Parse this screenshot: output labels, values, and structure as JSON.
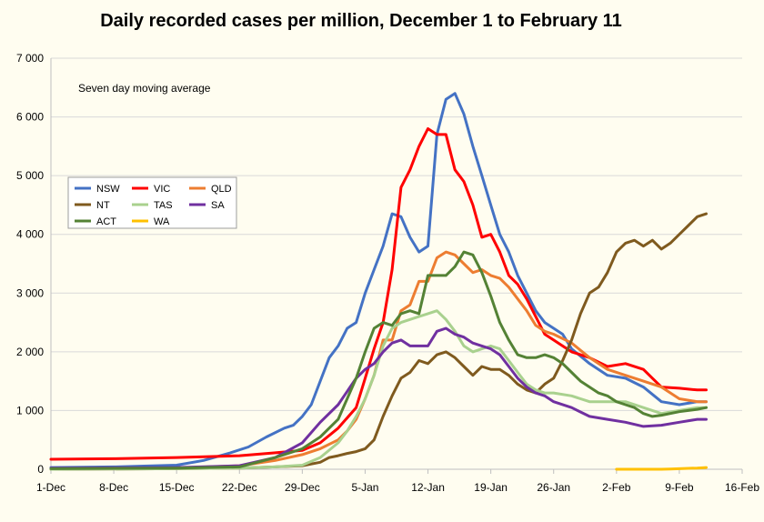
{
  "chart_data": {
    "type": "line",
    "title": "Daily recorded cases per million, December 1 to February 11",
    "annotation": "Seven day moving average",
    "x_ticks": [
      "1-Dec",
      "8-Dec",
      "15-Dec",
      "22-Dec",
      "29-Dec",
      "5-Jan",
      "12-Jan",
      "19-Jan",
      "26-Jan",
      "2-Feb",
      "9-Feb",
      "16-Feb"
    ],
    "x_range_days": [
      0,
      77
    ],
    "ylim": [
      0,
      7000
    ],
    "y_ticks": [
      "0",
      "1 000",
      "2 000",
      "3 000",
      "4 000",
      "5 000",
      "6 000",
      "7 000"
    ],
    "y_tick_values": [
      0,
      1000,
      2000,
      3000,
      4000,
      5000,
      6000,
      7000
    ],
    "grid": "horizontal",
    "legend_position": "left-middle",
    "series": [
      {
        "name": "NSW",
        "color": "#4472c4",
        "x": [
          0,
          7,
          14,
          17,
          20,
          22,
          24,
          26,
          27,
          28,
          29,
          30,
          31,
          32,
          33,
          34,
          35,
          36,
          37,
          38,
          39,
          40,
          41,
          42,
          43,
          44,
          45,
          46,
          47,
          48,
          49,
          50,
          51,
          52,
          53,
          54,
          55,
          56,
          57,
          58,
          60,
          62,
          64,
          66,
          68,
          70,
          72,
          73
        ],
        "y": [
          30,
          40,
          70,
          150,
          280,
          380,
          550,
          700,
          750,
          900,
          1100,
          1500,
          1900,
          2100,
          2400,
          2500,
          3000,
          3400,
          3800,
          4350,
          4300,
          3950,
          3700,
          3800,
          5700,
          6300,
          6400,
          6050,
          5500,
          5000,
          4500,
          4000,
          3700,
          3300,
          3000,
          2700,
          2500,
          2400,
          2300,
          2050,
          1800,
          1600,
          1550,
          1400,
          1150,
          1100,
          1150,
          1150
        ]
      },
      {
        "name": "VIC",
        "color": "#ff0000",
        "x": [
          0,
          7,
          14,
          21,
          25,
          28,
          30,
          32,
          34,
          35,
          36,
          37,
          38,
          39,
          40,
          41,
          42,
          43,
          44,
          45,
          46,
          47,
          48,
          49,
          50,
          51,
          52,
          53,
          54,
          55,
          56,
          58,
          60,
          62,
          64,
          66,
          67,
          68,
          70,
          72,
          73
        ],
        "y": [
          170,
          180,
          200,
          230,
          280,
          320,
          450,
          700,
          1050,
          1550,
          2050,
          2500,
          3400,
          4800,
          5100,
          5500,
          5800,
          5700,
          5700,
          5100,
          4900,
          4500,
          3950,
          4000,
          3700,
          3300,
          3150,
          2900,
          2600,
          2300,
          2200,
          2000,
          1900,
          1750,
          1800,
          1700,
          1550,
          1400,
          1380,
          1350,
          1350
        ]
      },
      {
        "name": "QLD",
        "color": "#ed7d31",
        "x": [
          0,
          14,
          21,
          25,
          28,
          30,
          32,
          33,
          34,
          35,
          36,
          37,
          38,
          39,
          40,
          41,
          42,
          43,
          44,
          45,
          46,
          47,
          48,
          49,
          50,
          51,
          52,
          53,
          54,
          55,
          56,
          58,
          60,
          62,
          64,
          66,
          68,
          70,
          72,
          73
        ],
        "y": [
          10,
          20,
          60,
          150,
          250,
          350,
          500,
          650,
          850,
          1200,
          1600,
          2200,
          2200,
          2700,
          2800,
          3200,
          3200,
          3600,
          3700,
          3650,
          3500,
          3350,
          3400,
          3300,
          3250,
          3100,
          2900,
          2700,
          2450,
          2350,
          2300,
          2150,
          1900,
          1700,
          1600,
          1500,
          1400,
          1200,
          1150,
          1150
        ]
      },
      {
        "name": "NT",
        "color": "#7f5a1e",
        "x": [
          0,
          14,
          21,
          25,
          28,
          30,
          31,
          32,
          33,
          34,
          35,
          36,
          37,
          38,
          39,
          40,
          41,
          42,
          43,
          44,
          45,
          46,
          47,
          48,
          49,
          50,
          51,
          52,
          53,
          54,
          55,
          56,
          57,
          58,
          59,
          60,
          61,
          62,
          63,
          64,
          65,
          66,
          67,
          68,
          69,
          70,
          71,
          72,
          73
        ],
        "y": [
          0,
          10,
          20,
          40,
          60,
          120,
          200,
          230,
          270,
          300,
          350,
          500,
          900,
          1250,
          1550,
          1650,
          1850,
          1800,
          1950,
          2000,
          1900,
          1750,
          1600,
          1750,
          1700,
          1700,
          1600,
          1450,
          1350,
          1300,
          1450,
          1550,
          1850,
          2200,
          2650,
          3000,
          3100,
          3350,
          3700,
          3850,
          3900,
          3800,
          3900,
          3750,
          3850,
          4000,
          4150,
          4300,
          4350
        ]
      },
      {
        "name": "TAS",
        "color": "#a9d18e",
        "x": [
          0,
          14,
          21,
          25,
          28,
          30,
          32,
          33,
          34,
          35,
          36,
          37,
          38,
          39,
          40,
          41,
          42,
          43,
          44,
          45,
          46,
          47,
          48,
          49,
          50,
          51,
          52,
          53,
          54,
          55,
          56,
          58,
          60,
          62,
          64,
          66,
          68,
          70,
          72,
          73
        ],
        "y": [
          0,
          10,
          20,
          40,
          70,
          200,
          450,
          650,
          900,
          1200,
          1600,
          2100,
          2400,
          2500,
          2550,
          2600,
          2650,
          2700,
          2550,
          2350,
          2100,
          2000,
          2050,
          2100,
          2050,
          1850,
          1650,
          1450,
          1350,
          1300,
          1300,
          1250,
          1150,
          1150,
          1150,
          1050,
          950,
          1000,
          1050,
          1050
        ]
      },
      {
        "name": "SA",
        "color": "#7030a0",
        "x": [
          0,
          14,
          21,
          25,
          28,
          30,
          32,
          34,
          35,
          36,
          37,
          38,
          39,
          40,
          41,
          42,
          43,
          44,
          45,
          46,
          47,
          48,
          49,
          50,
          51,
          52,
          53,
          54,
          55,
          56,
          58,
          60,
          62,
          64,
          66,
          68,
          70,
          72,
          73
        ],
        "y": [
          20,
          30,
          60,
          200,
          450,
          800,
          1100,
          1550,
          1700,
          1800,
          2000,
          2150,
          2200,
          2100,
          2100,
          2100,
          2350,
          2400,
          2300,
          2250,
          2150,
          2100,
          2050,
          1950,
          1750,
          1550,
          1400,
          1300,
          1250,
          1150,
          1050,
          900,
          850,
          800,
          730,
          750,
          800,
          850,
          850
        ]
      },
      {
        "name": "ACT",
        "color": "#548235",
        "x": [
          0,
          14,
          21,
          25,
          28,
          30,
          32,
          33,
          34,
          35,
          36,
          37,
          38,
          39,
          40,
          41,
          42,
          43,
          44,
          45,
          46,
          47,
          48,
          49,
          50,
          51,
          52,
          53,
          54,
          55,
          56,
          57,
          58,
          59,
          60,
          61,
          62,
          63,
          64,
          65,
          66,
          67,
          68,
          69,
          70,
          71,
          72,
          73
        ],
        "y": [
          10,
          20,
          40,
          200,
          350,
          550,
          850,
          1200,
          1550,
          2000,
          2400,
          2500,
          2450,
          2650,
          2700,
          2650,
          3300,
          3300,
          3300,
          3450,
          3700,
          3650,
          3350,
          2950,
          2500,
          2200,
          1950,
          1900,
          1900,
          1950,
          1900,
          1800,
          1650,
          1500,
          1400,
          1300,
          1250,
          1150,
          1100,
          1050,
          950,
          900,
          920,
          950,
          980,
          1000,
          1020,
          1050
        ]
      },
      {
        "name": "WA",
        "color": "#ffc000",
        "x": [
          63,
          64,
          65,
          66,
          67,
          68,
          69,
          70,
          71,
          72,
          73
        ],
        "y": [
          0,
          0,
          0,
          0,
          0,
          0,
          5,
          10,
          15,
          20,
          30
        ]
      }
    ]
  }
}
